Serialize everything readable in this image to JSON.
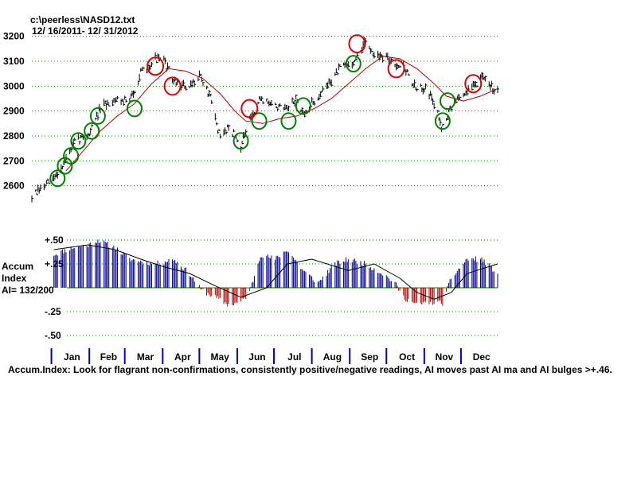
{
  "header": {
    "file": "c:\\peerless\\NASD12.txt",
    "range": " 12/ 16/2011- 12/ 31/2012"
  },
  "accum": {
    "title1": "Accum",
    "title2": "Index",
    "ai": "AI= 132/200"
  },
  "footer": "Accum.Index: Look for flagrant non-confirmations, consistently positive/negative readings, AI moves past AI ma and AI bulges >+.46.",
  "colors": {
    "grid": "#008000",
    "ma": "#b00000",
    "pos_bar": "#00008b",
    "neg_bar": "#b00000",
    "buy_circle": "#008000",
    "sell_circle": "#e00000",
    "month_tick": "#0000cc"
  },
  "chart_data": [
    {
      "type": "line",
      "subtype": "high-low price bars with moving average",
      "title": "c:\\peerless\\NASD12.txt",
      "subtitle": " 12/ 16/2011- 12/ 31/2012",
      "ylim": [
        2500,
        3250
      ],
      "yticks": [
        2600,
        2700,
        2800,
        2900,
        3000,
        3100,
        3200
      ],
      "ytick_labels": [
        "2600",
        "2700",
        "2800",
        "2900",
        "3000",
        "3100",
        "3200"
      ],
      "grid": true,
      "x_date_range": [
        "2011-12-16",
        "2012-12-31"
      ],
      "series": [
        {
          "key": "price",
          "x": [
            "2011-12-16",
            "2012-01-03",
            "2012-01-11",
            "2012-01-20",
            "2012-02-01",
            "2012-02-10",
            "2012-02-22",
            "2012-03-05",
            "2012-03-14",
            "2012-03-26",
            "2012-04-02",
            "2012-04-10",
            "2012-04-23",
            "2012-05-01",
            "2012-05-10",
            "2012-05-18",
            "2012-05-25",
            "2012-06-04",
            "2012-06-11",
            "2012-06-20",
            "2012-07-02",
            "2012-07-12",
            "2012-07-19",
            "2012-07-25",
            "2012-08-01",
            "2012-08-13",
            "2012-08-24",
            "2012-09-05",
            "2012-09-14",
            "2012-09-21",
            "2012-10-01",
            "2012-10-05",
            "2012-10-15",
            "2012-10-26",
            "2012-11-02",
            "2012-11-09",
            "2012-11-15",
            "2012-11-26",
            "2012-12-06",
            "2012-12-18",
            "2012-12-31"
          ],
          "y": [
            2555,
            2630,
            2690,
            2775,
            2810,
            2910,
            2950,
            2940,
            3050,
            3110,
            3100,
            3020,
            2990,
            3050,
            2950,
            2790,
            2840,
            2760,
            2860,
            2950,
            2920,
            2900,
            2950,
            2880,
            2930,
            3000,
            3070,
            3100,
            3180,
            3130,
            3110,
            3100,
            3080,
            2980,
            3000,
            2930,
            2840,
            2940,
            2980,
            3030,
            2980
          ]
        },
        {
          "key": "ma",
          "x": [
            "2012-01-13",
            "2012-01-27",
            "2012-02-10",
            "2012-02-24",
            "2012-03-09",
            "2012-03-23",
            "2012-04-06",
            "2012-04-20",
            "2012-05-04",
            "2012-05-18",
            "2012-05-30",
            "2012-06-08",
            "2012-06-22",
            "2012-07-06",
            "2012-07-20",
            "2012-08-03",
            "2012-08-17",
            "2012-08-31",
            "2012-09-14",
            "2012-09-28",
            "2012-10-12",
            "2012-10-26",
            "2012-11-09",
            "2012-11-19",
            "2012-12-03",
            "2012-12-17",
            "2012-12-31"
          ],
          "y": [
            2660,
            2740,
            2820,
            2880,
            2930,
            3010,
            3070,
            3060,
            3030,
            2970,
            2900,
            2860,
            2850,
            2870,
            2880,
            2910,
            2950,
            3010,
            3070,
            3120,
            3110,
            3070,
            3010,
            2960,
            2940,
            2960,
            2990
          ]
        }
      ],
      "annotations": {
        "buy_signals": [
          {
            "x": "2012-01-06",
            "y": 2630
          },
          {
            "x": "2012-01-12",
            "y": 2680
          },
          {
            "x": "2012-01-17",
            "y": 2720
          },
          {
            "x": "2012-01-23",
            "y": 2780
          },
          {
            "x": "2012-02-03",
            "y": 2820
          },
          {
            "x": "2012-02-08",
            "y": 2880
          },
          {
            "x": "2012-03-09",
            "y": 2910
          },
          {
            "x": "2012-06-04",
            "y": 2780
          },
          {
            "x": "2012-06-19",
            "y": 2860
          },
          {
            "x": "2012-07-13",
            "y": 2860
          },
          {
            "x": "2012-07-25",
            "y": 2920
          },
          {
            "x": "2012-09-04",
            "y": 3090
          },
          {
            "x": "2012-11-16",
            "y": 2860
          },
          {
            "x": "2012-11-20",
            "y": 2940
          }
        ],
        "sell_signals": [
          {
            "x": "2012-03-26",
            "y": 3080
          },
          {
            "x": "2012-04-09",
            "y": 3000
          },
          {
            "x": "2012-06-11",
            "y": 2910
          },
          {
            "x": "2012-09-07",
            "y": 3170
          },
          {
            "x": "2012-10-09",
            "y": 3070
          },
          {
            "x": "2012-12-11",
            "y": 3010
          }
        ]
      }
    },
    {
      "type": "bar",
      "title": "Accum Index",
      "ylim": [
        -0.6,
        0.55
      ],
      "yticks": [
        0.5,
        0.25,
        -0.25,
        -0.5
      ],
      "ytick_labels": [
        "+.50",
        "+.25",
        "-.25",
        "-.50"
      ],
      "grid": true,
      "series": [
        {
          "key": "ai",
          "x": [
            "2011-12-16",
            "2012-01-03",
            "2012-01-18",
            "2012-02-01",
            "2012-02-08",
            "2012-02-22",
            "2012-03-05",
            "2012-03-26",
            "2012-04-10",
            "2012-04-23",
            "2012-05-02",
            "2012-05-14",
            "2012-05-25",
            "2012-06-04",
            "2012-06-11",
            "2012-06-20",
            "2012-07-02",
            "2012-07-12",
            "2012-07-25",
            "2012-08-06",
            "2012-08-20",
            "2012-08-31",
            "2012-09-14",
            "2012-09-28",
            "2012-10-08",
            "2012-10-15",
            "2012-10-26",
            "2012-11-05",
            "2012-11-16",
            "2012-11-23",
            "2012-12-06",
            "2012-12-18",
            "2012-12-31"
          ],
          "y": [
            0.4,
            0.35,
            0.42,
            0.45,
            0.5,
            0.42,
            0.3,
            0.25,
            0.3,
            0.15,
            -0.02,
            -0.1,
            -0.18,
            -0.15,
            -0.05,
            0.35,
            0.3,
            0.4,
            0.18,
            0.05,
            0.25,
            0.3,
            0.25,
            0.15,
            0.05,
            -0.1,
            -0.18,
            -0.15,
            -0.16,
            0.1,
            0.3,
            0.3,
            0.15
          ]
        },
        {
          "key": "ai_ma",
          "x": [
            "2012-01-03",
            "2012-01-31",
            "2012-02-22",
            "2012-03-14",
            "2012-04-02",
            "2012-04-23",
            "2012-05-14",
            "2012-06-04",
            "2012-06-25",
            "2012-07-12",
            "2012-08-01",
            "2012-08-31",
            "2012-09-21",
            "2012-10-12",
            "2012-10-26",
            "2012-11-09",
            "2012-11-23",
            "2012-12-06",
            "2012-12-31"
          ],
          "y": [
            0.4,
            0.45,
            0.4,
            0.3,
            0.22,
            0.15,
            0.02,
            -0.1,
            0.0,
            0.25,
            0.3,
            0.18,
            0.25,
            0.1,
            -0.05,
            -0.12,
            -0.05,
            0.15,
            0.25
          ]
        }
      ]
    }
  ],
  "months": [
    "Jan",
    "Feb",
    "Mar",
    "Apr",
    "May",
    "Jun",
    "Jul",
    "Aug",
    "Sep",
    "Oct",
    "Nov",
    "Dec"
  ]
}
